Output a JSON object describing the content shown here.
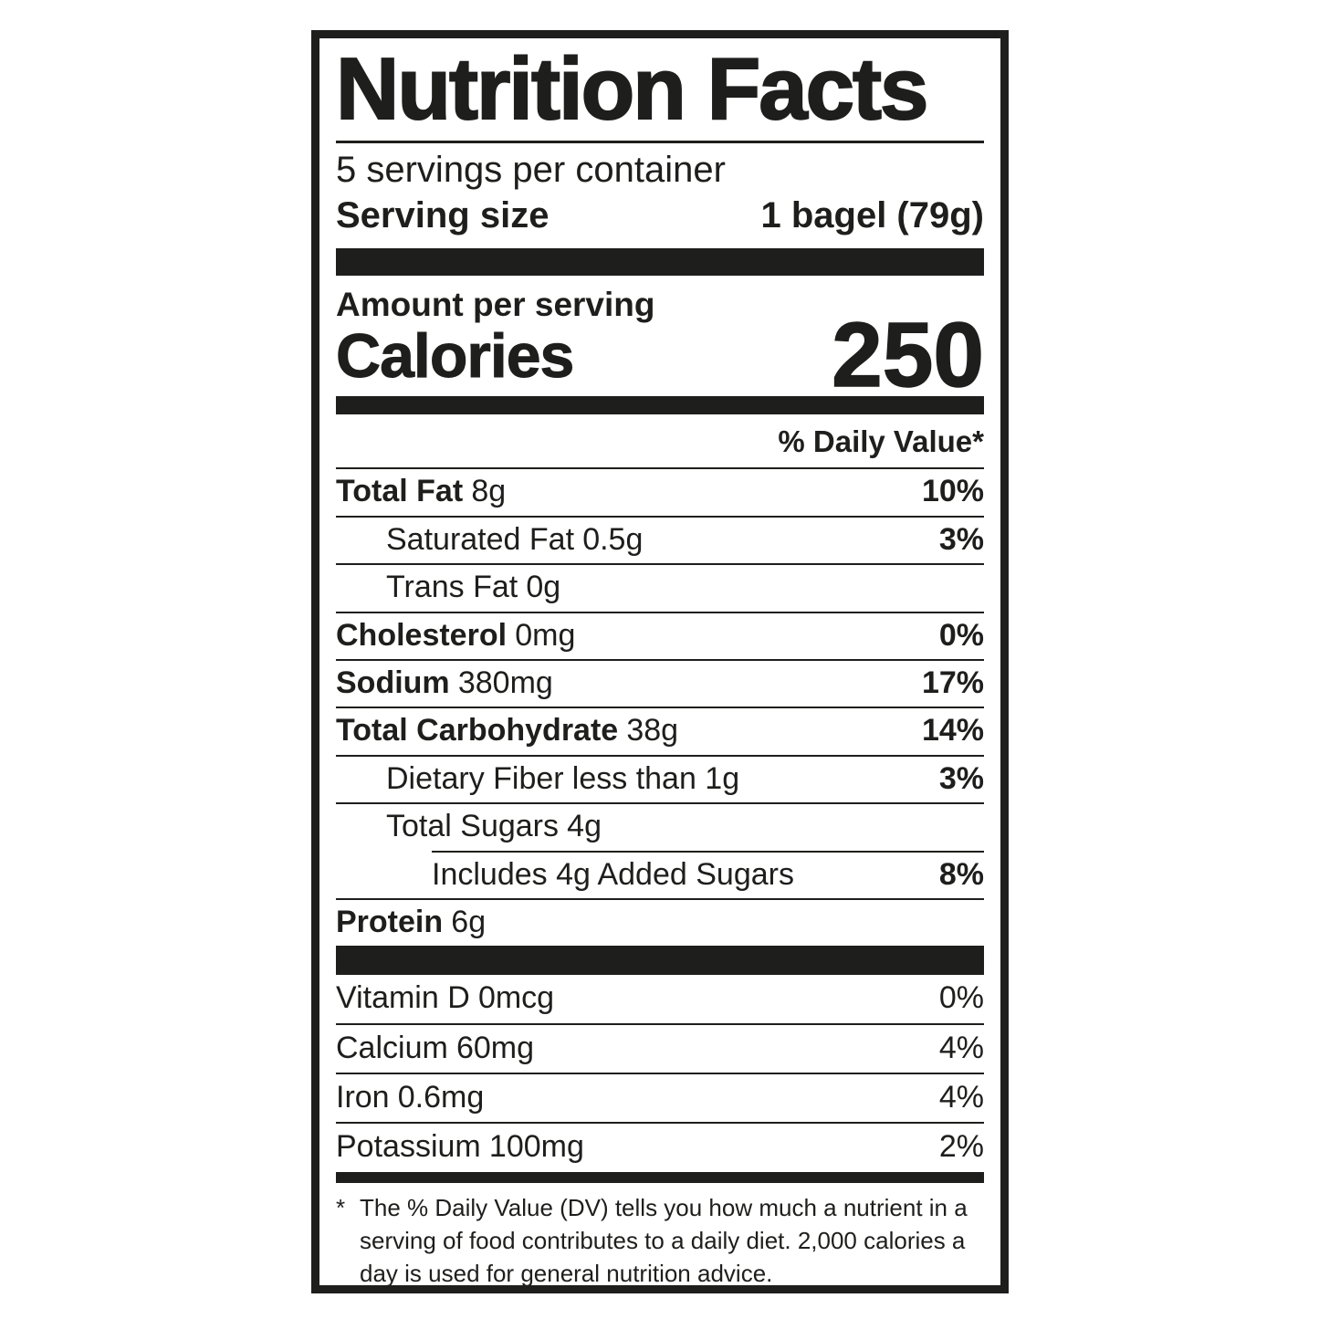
{
  "label": {
    "title": "Nutrition Facts",
    "servings_per_container": "5 servings per container",
    "serving_size_label": "Serving size",
    "serving_size_value": "1 bagel (79g)",
    "amount_per_serving": "Amount per serving",
    "calories_label": "Calories",
    "calories_value": "250",
    "daily_value_header": "% Daily Value*",
    "nutrients": [
      {
        "name": "Total Fat",
        "amount": "8g",
        "dv": "10%"
      },
      {
        "name": "Saturated Fat",
        "amount": "0.5g",
        "dv": "3%"
      },
      {
        "name": "Trans Fat",
        "amount": "0g",
        "dv": ""
      },
      {
        "name": "Cholesterol",
        "amount": "0mg",
        "dv": "0%"
      },
      {
        "name": "Sodium",
        "amount": "380mg",
        "dv": "17%"
      },
      {
        "name": "Total Carbohydrate",
        "amount": "38g",
        "dv": "14%"
      },
      {
        "name": "Dietary Fiber",
        "amount": "less than 1g",
        "dv": "3%"
      },
      {
        "name": "Total Sugars",
        "amount": "4g",
        "dv": ""
      },
      {
        "name": "Includes 4g Added Sugars",
        "amount": "",
        "dv": "8%"
      },
      {
        "name": "Protein",
        "amount": "6g",
        "dv": ""
      }
    ],
    "vitamins": [
      {
        "name": "Vitamin D",
        "amount": "0mcg",
        "dv": "0%"
      },
      {
        "name": "Calcium",
        "amount": "60mg",
        "dv": "4%"
      },
      {
        "name": "Iron",
        "amount": "0.6mg",
        "dv": "4%"
      },
      {
        "name": "Potassium",
        "amount": "100mg",
        "dv": "2%"
      }
    ],
    "footnote_marker": "*",
    "footnote_text": "The % Daily Value (DV) tells you how much a nutrient in a\nserving of food contributes to a daily diet. 2,000 calories a\nday is used for general nutrition advice."
  },
  "colors": {
    "ink": "#1e1e1c",
    "background": "#ffffff"
  }
}
